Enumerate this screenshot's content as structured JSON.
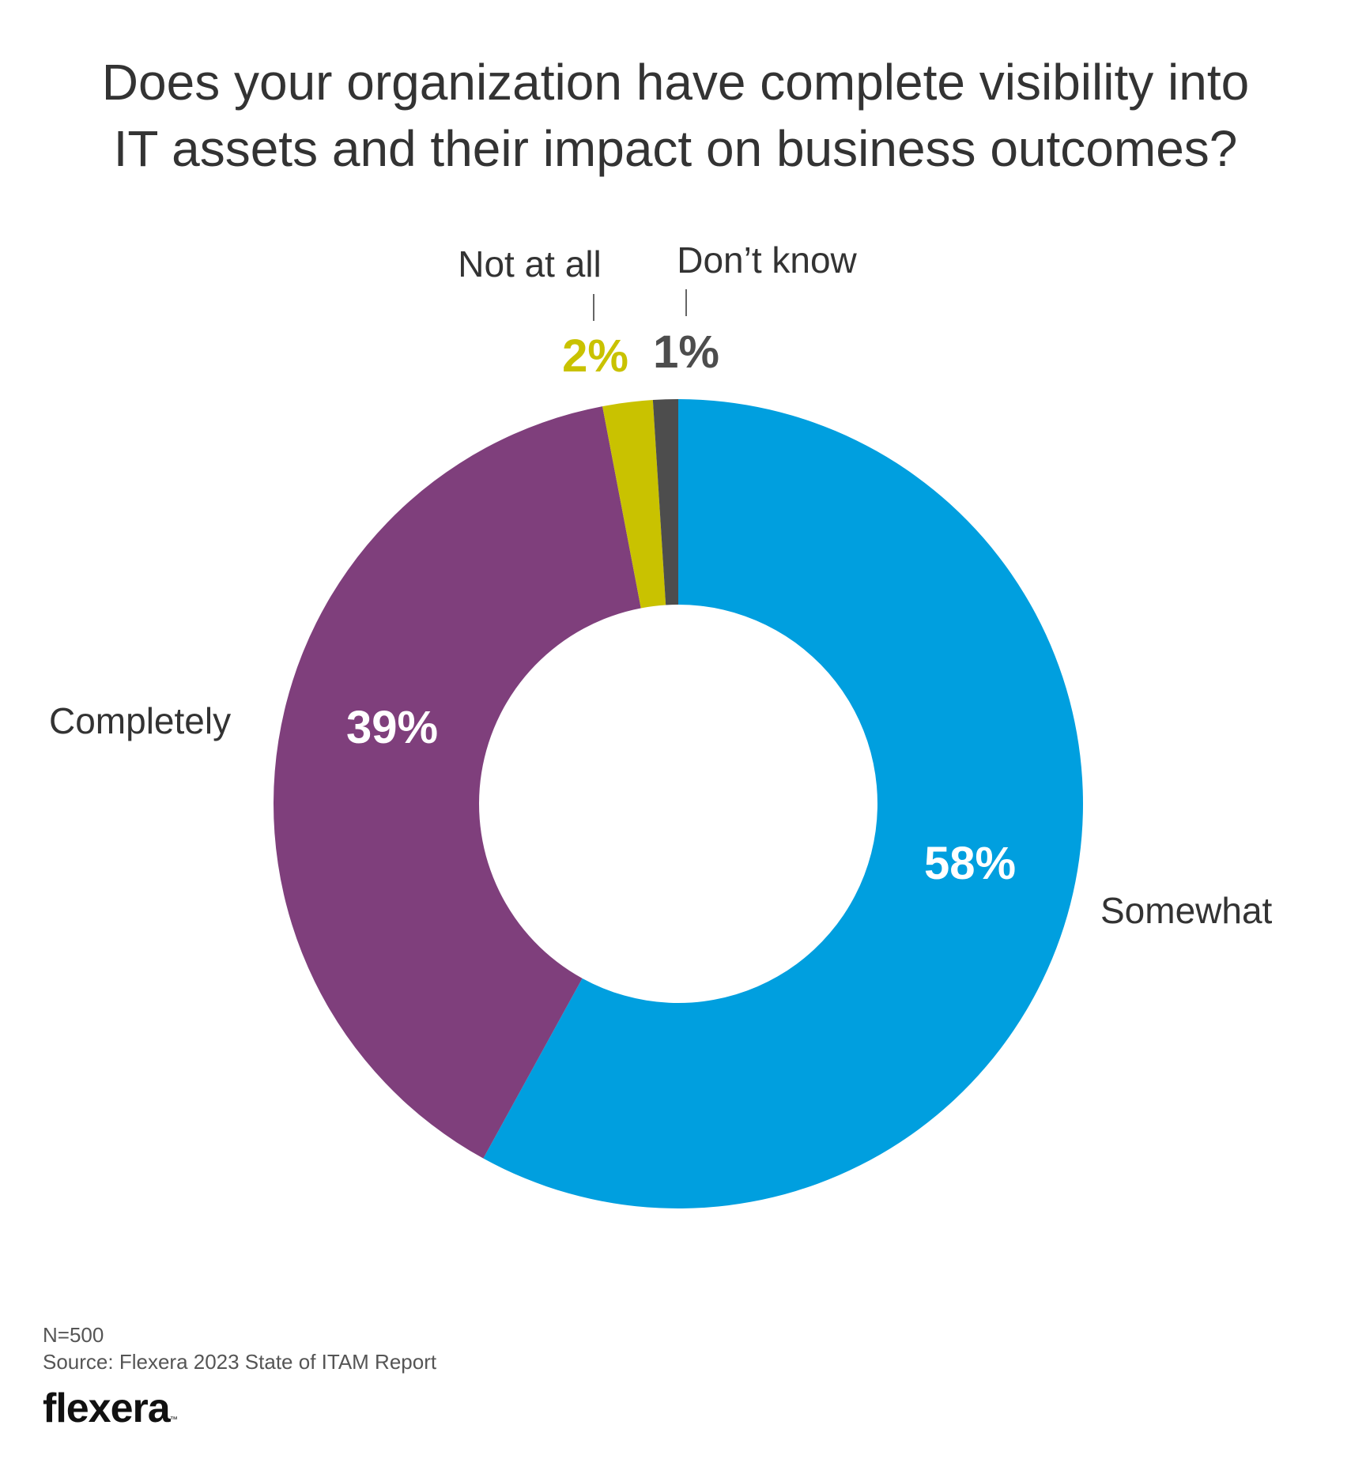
{
  "title_lines": [
    "Does your organization have complete visibility into",
    "IT assets and their impact on business outcomes?"
  ],
  "chart_data": {
    "type": "pie",
    "variant": "donut",
    "title": "Does your organization have complete visibility into IT assets and their impact on business outcomes?",
    "slices": [
      {
        "label": "Somewhat",
        "value": 58,
        "display": "58%",
        "color": "#009FDF",
        "value_color": "#FFFFFF"
      },
      {
        "label": "Completely",
        "value": 39,
        "display": "39%",
        "color": "#7F3F7C",
        "value_color": "#FFFFFF"
      },
      {
        "label": "Not at all",
        "value": 2,
        "display": "2%",
        "color": "#C9C200",
        "value_color": "#C9C200"
      },
      {
        "label": "Don’t know",
        "value": 1,
        "display": "1%",
        "color": "#4D4D4D",
        "value_color": "#4D4D4D"
      }
    ],
    "start": "top, clockwise"
  },
  "footer": {
    "n": "N=500",
    "source": "Source: Flexera 2023 State of ITAM Report"
  },
  "logo": {
    "text": "flexera",
    "tm": "™"
  }
}
